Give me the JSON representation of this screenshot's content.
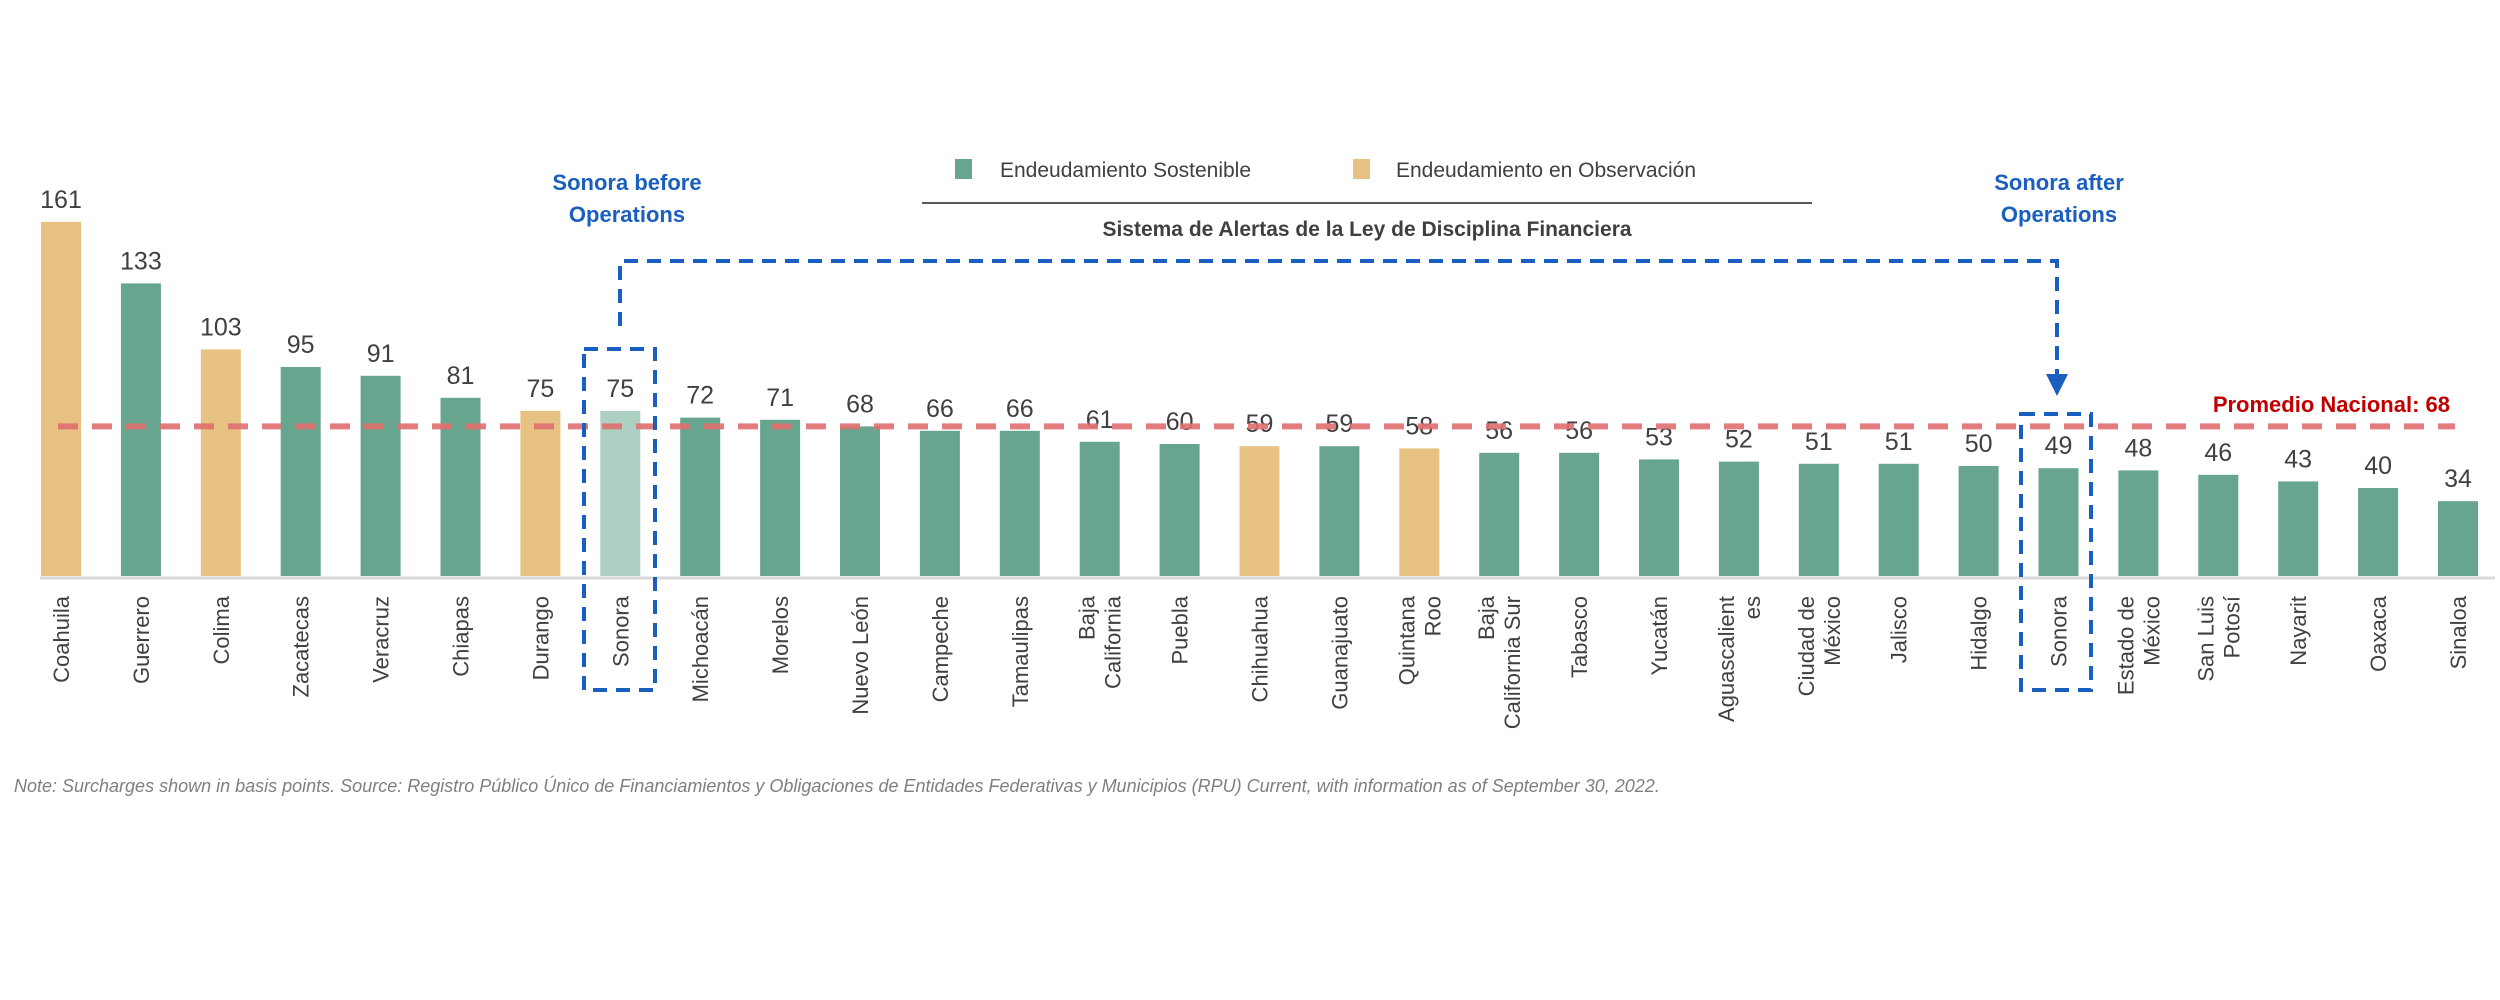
{
  "chart_data": {
    "type": "bar",
    "categories": [
      "Coahuila",
      "Guerrero",
      "Colima",
      "Zacatecas",
      "Veracruz",
      "Chiapas",
      "Durango",
      "Sonora",
      "Michoacán",
      "Morelos",
      "Nuevo León",
      "Campeche",
      "Tamaulipas",
      "Baja\nCalifornia",
      "Puebla",
      "Chihuahua",
      "Guanajuato",
      "Quintana\nRoo",
      "Baja\nCalifornia Sur",
      "Tabasco",
      "Yucatán",
      "Aguascalient\nes",
      "Ciudad de\nMéxico",
      "Jalisco",
      "Hidalgo",
      "Sonora",
      "Estado de\nMéxico",
      "San Luis\nPotosí",
      "Nayarit",
      "Oaxaca",
      "Sinaloa"
    ],
    "values": [
      161,
      133,
      103,
      95,
      91,
      81,
      75,
      75,
      72,
      71,
      68,
      66,
      66,
      61,
      60,
      59,
      59,
      58,
      56,
      56,
      53,
      52,
      51,
      51,
      50,
      49,
      48,
      46,
      43,
      40,
      34
    ],
    "status": [
      "observacion",
      "sostenible",
      "observacion",
      "sostenible",
      "sostenible",
      "sostenible",
      "observacion",
      "sonora-before",
      "sostenible",
      "sostenible",
      "sostenible",
      "sostenible",
      "sostenible",
      "sostenible",
      "sostenible",
      "observacion",
      "sostenible",
      "observacion",
      "sostenible",
      "sostenible",
      "sostenible",
      "sostenible",
      "sostenible",
      "sostenible",
      "sostenible",
      "sostenible",
      "sostenible",
      "sostenible",
      "sostenible",
      "sostenible",
      "sostenible"
    ],
    "ylim": [
      0,
      170
    ],
    "grid": false,
    "legend": {
      "position": "top-center",
      "items": [
        {
          "label": "Endeudamiento Sostenible",
          "color": "#68a58e"
        },
        {
          "label": "Endeudamiento en Observación",
          "color": "#e8c283"
        }
      ],
      "title": "Sistema de Alertas de la Ley de Disciplina Financiera"
    },
    "reference_line": {
      "value": 68,
      "label": "Promedio Nacional: 68",
      "color": "#e07070",
      "label_color": "#c00000"
    },
    "annotations": [
      {
        "text_lines": [
          "Sonora before",
          "Operations"
        ],
        "color": "#1a5fbf"
      },
      {
        "text_lines": [
          "Sonora after",
          "Operations"
        ],
        "color": "#1a5fbf"
      }
    ],
    "colors": {
      "sostenible": "#68a58e",
      "observacion": "#e8c283",
      "sonora-before": "#aed0c3"
    }
  },
  "note": "Note: Surcharges shown in basis points. Source: Registro Público Único de Financiamientos y Obligaciones de Entidades Federativas y Municipios (RPU) Current, with information as of September 30, 2022."
}
